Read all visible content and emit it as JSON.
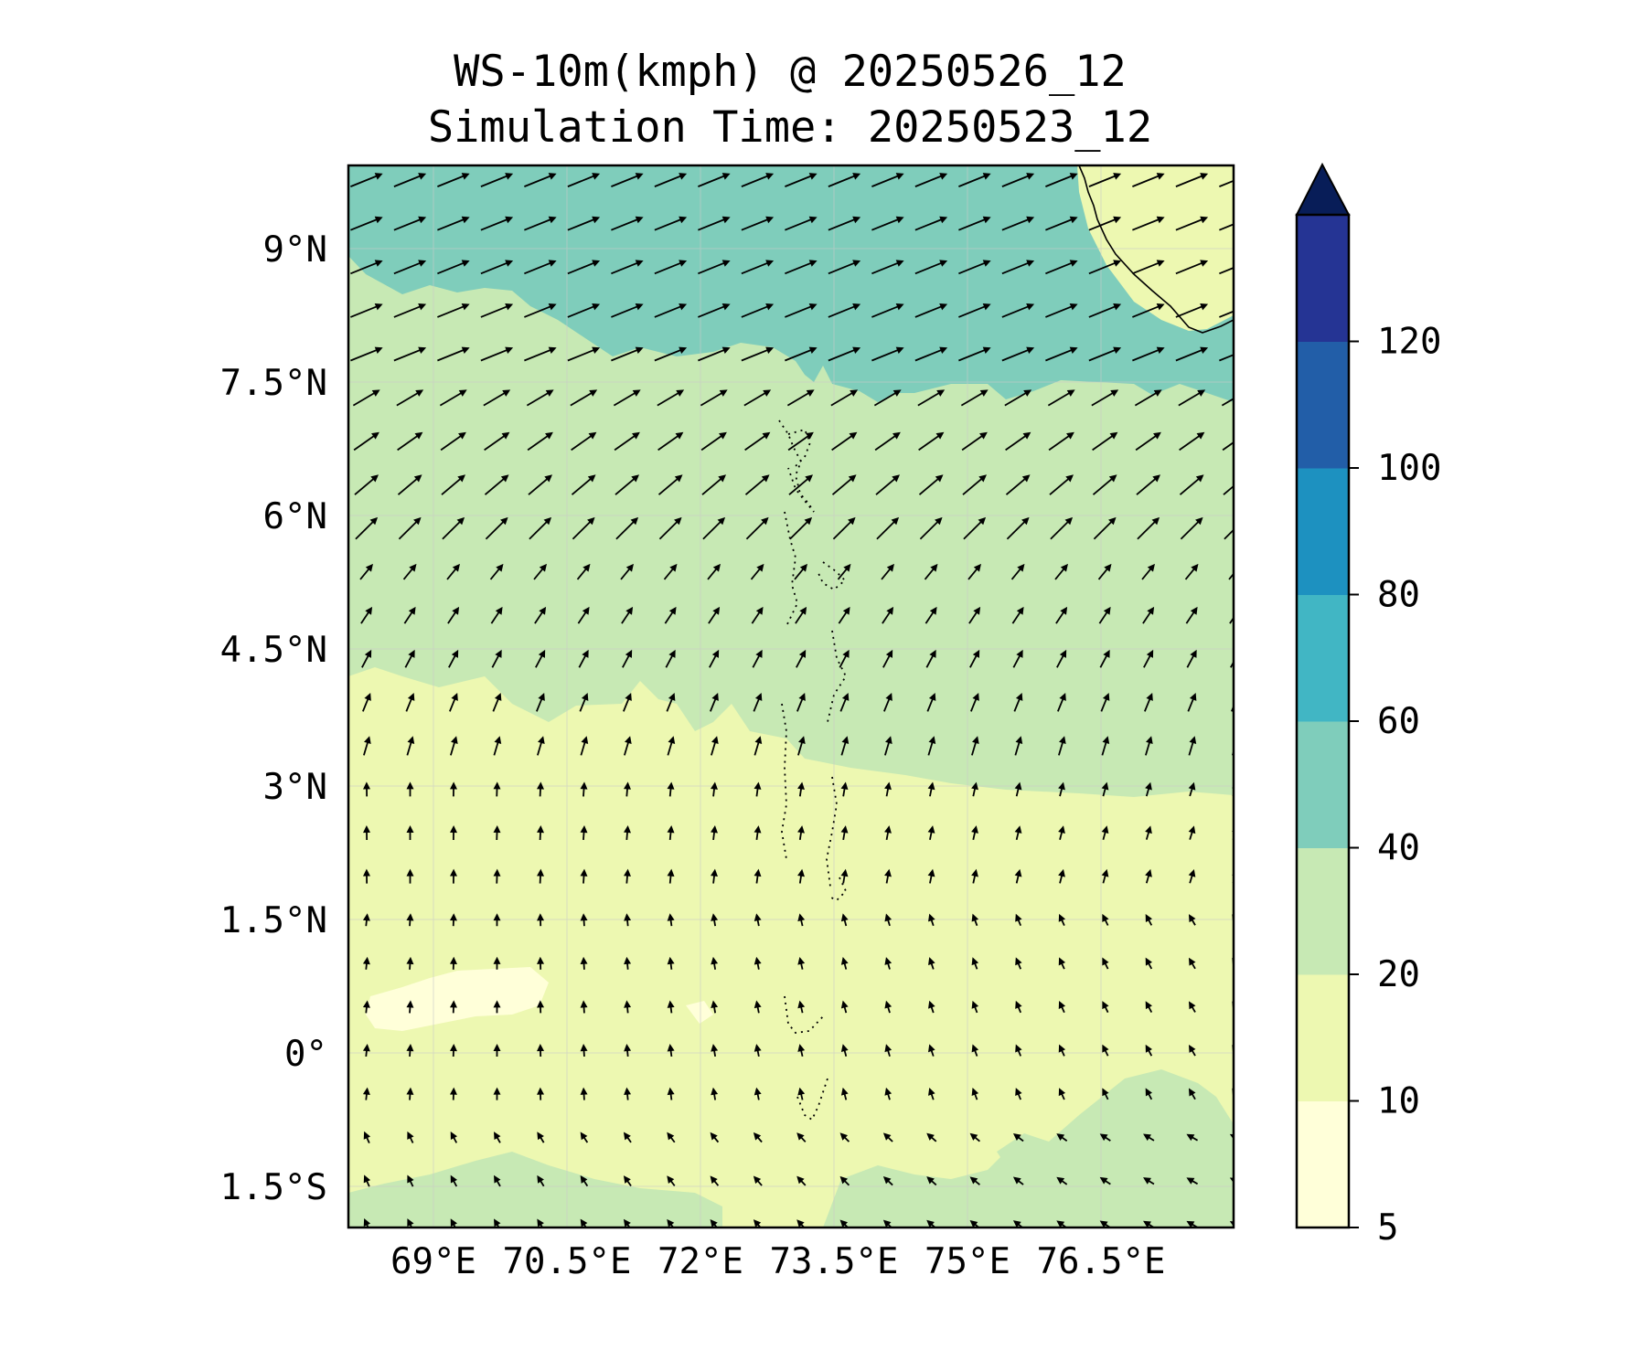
{
  "title": "WS-10m(kmph) @ 20250526_12",
  "subtitle": "Simulation Time: 20250523_12",
  "map": {
    "variable": "10 m wind speed (kmph) with wind direction arrows",
    "lon_range": [
      67.9,
      78.0
    ],
    "lat_range": [
      -1.95,
      9.95
    ],
    "lon_ticks": [
      "69°E",
      "70.5°E",
      "72°E",
      "73.5°E",
      "75°E",
      "76.5°E"
    ],
    "lat_ticks": [
      "9°N",
      "7.5°N",
      "6°N",
      "4.5°N",
      "3°N",
      "1.5°N",
      "0°",
      "1.5°S"
    ],
    "regions": [
      {
        "name": "strong-west-southwesterly-north",
        "speed_band": "40-60",
        "lat_from": 8.5,
        "lon_from": 67.9,
        "lon_to": 78.0
      },
      {
        "name": "moderate-westerly-central",
        "speed_band": "20-40",
        "lat_from": 3.0,
        "lat_to": 8.5
      },
      {
        "name": "weak-southeasterly-south",
        "speed_band": "10-20",
        "lat_from": -1.95,
        "lat_to": 3.0
      }
    ],
    "land": [
      "India (southwest coast)",
      "Maldives atolls"
    ]
  },
  "colorbar": {
    "levels": [
      5,
      10,
      20,
      40,
      60,
      80,
      100,
      120
    ],
    "tick_labels": [
      "5",
      "10",
      "20",
      "40",
      "60",
      "80",
      "100",
      "120"
    ],
    "colors": [
      "#ffffd9",
      "#edf8b1",
      "#c7e9b4",
      "#7fcdbb",
      "#41b6c4",
      "#1d91c0",
      "#225ea8",
      "#253494"
    ],
    "extend_color": "#081d58",
    "extend": "max"
  }
}
